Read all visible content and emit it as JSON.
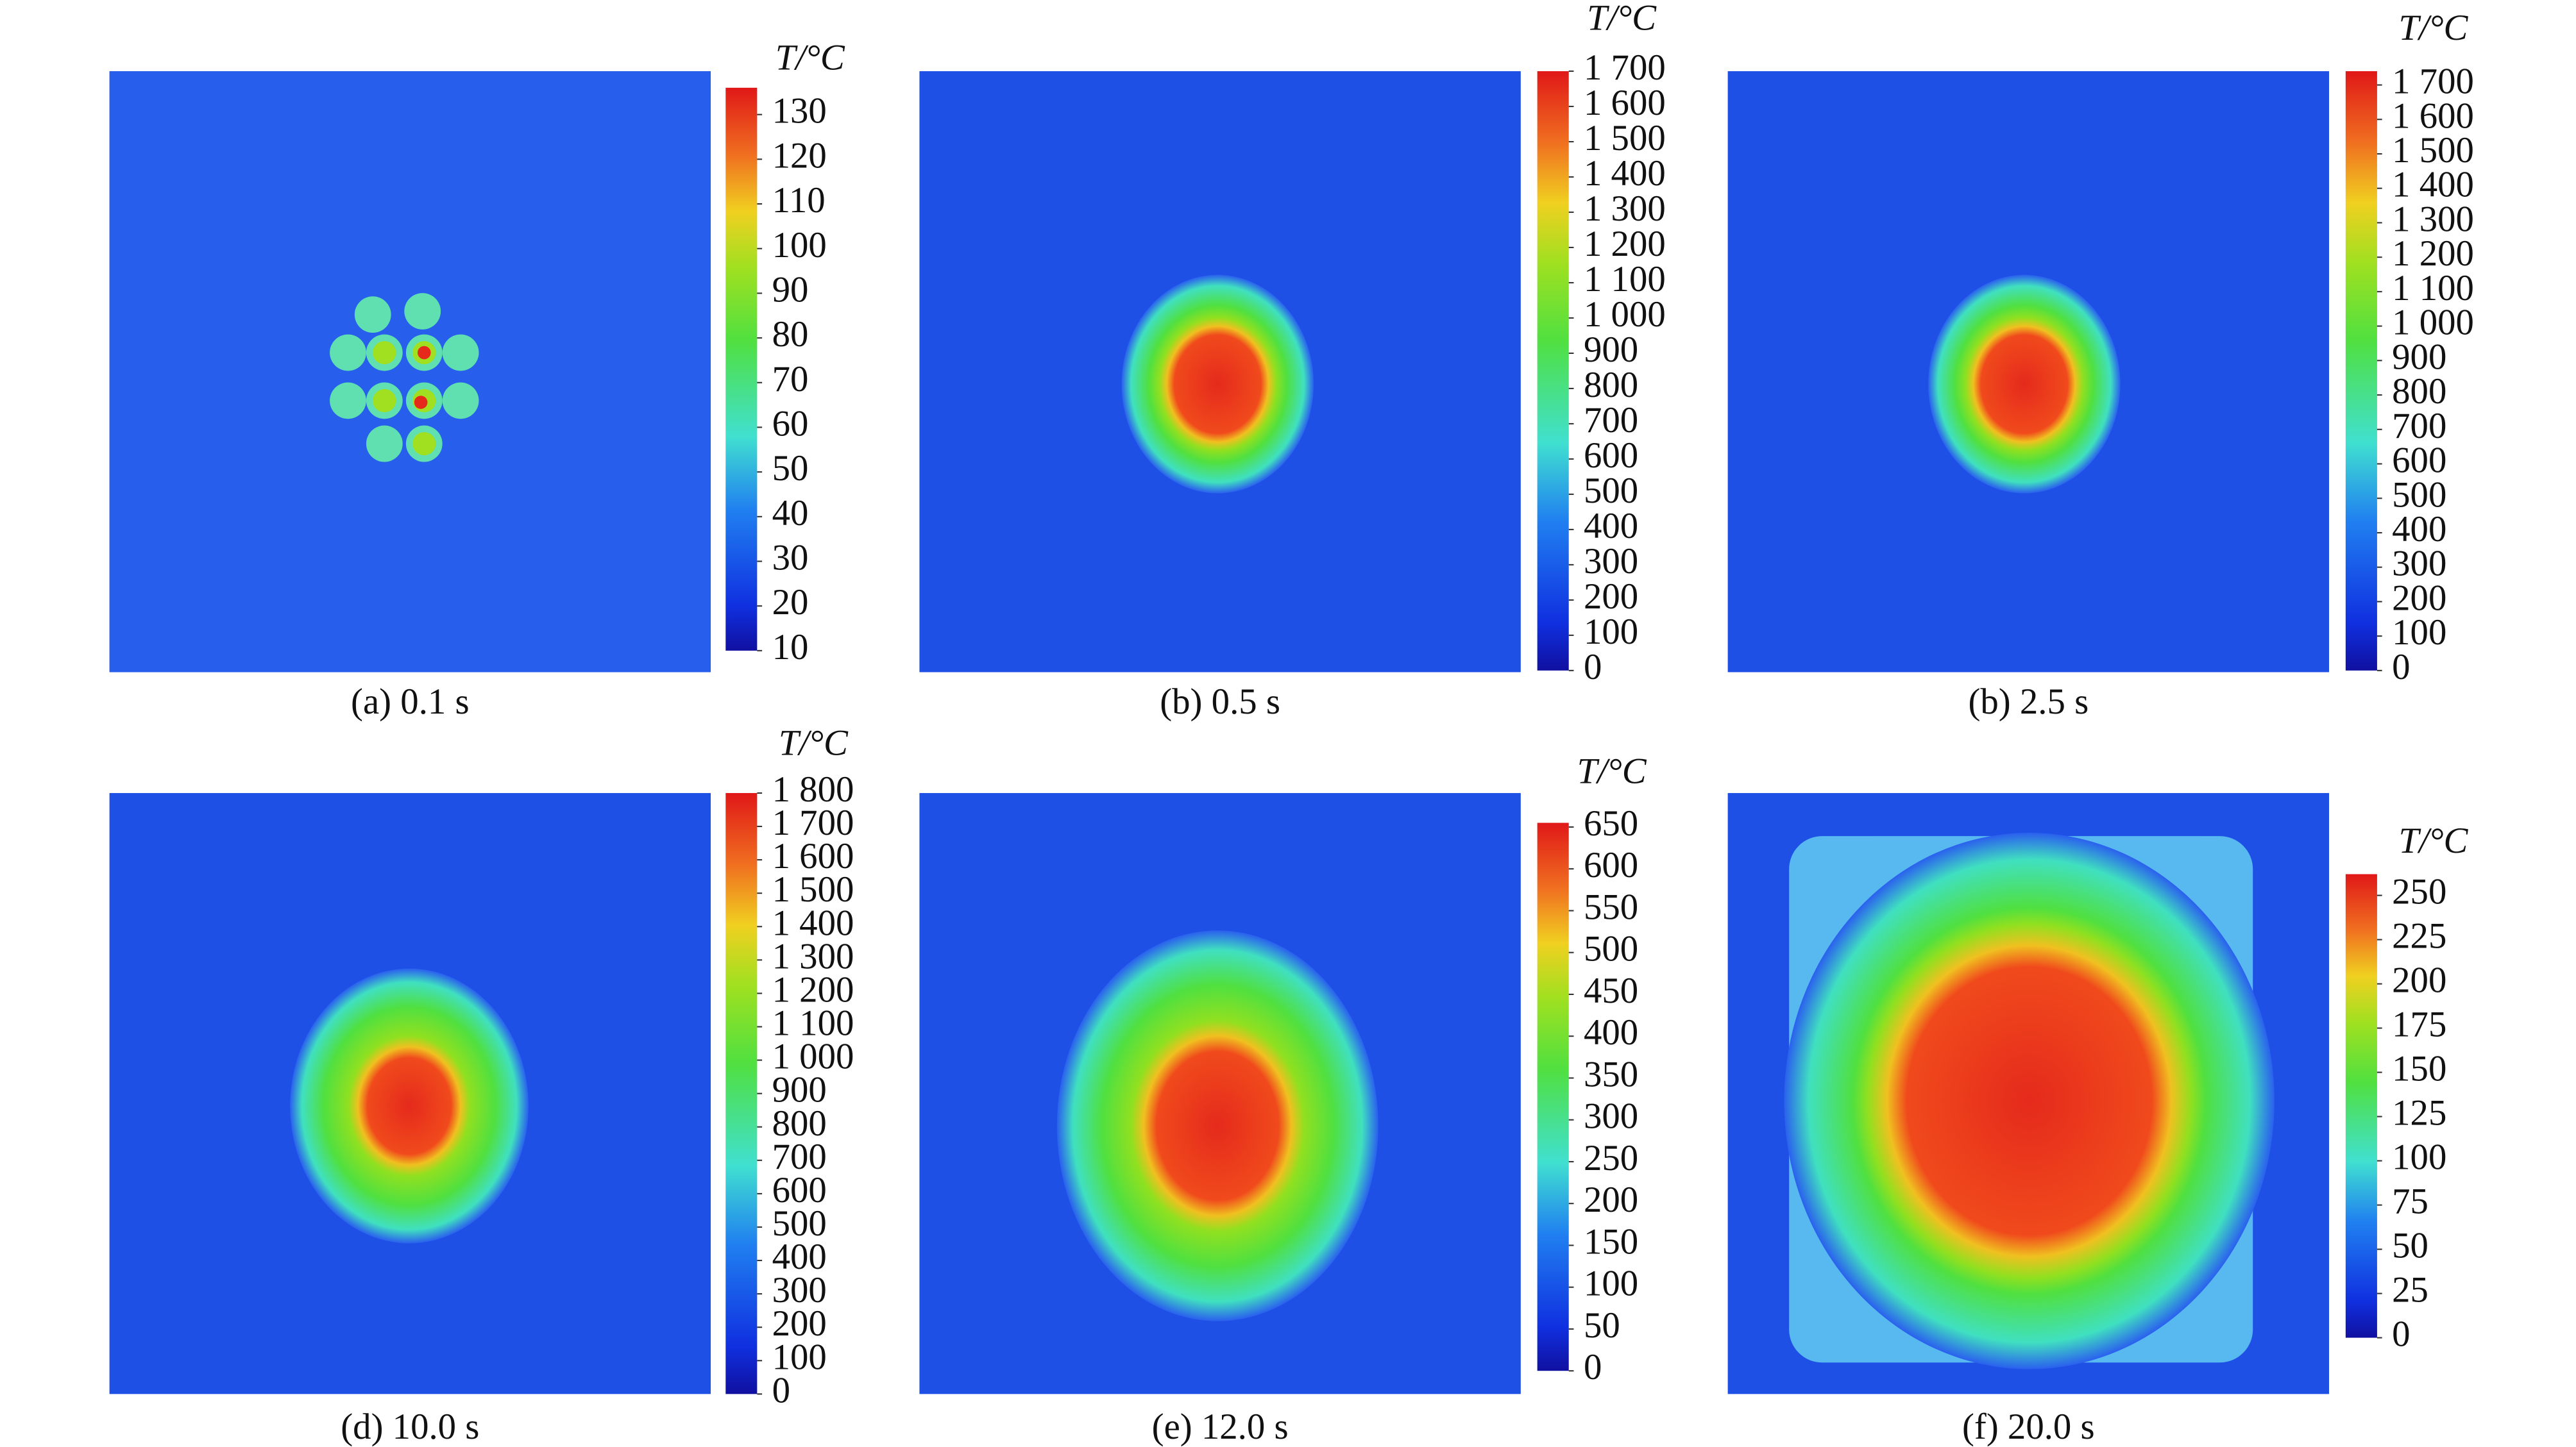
{
  "chart_data": [
    {
      "type": "heatmap",
      "caption": "(a) 0.1 s",
      "colorbar_label": "T/°C",
      "ylim": [
        10,
        136
      ],
      "yticks": [
        10,
        20,
        30,
        40,
        50,
        60,
        70,
        80,
        90,
        100,
        110,
        120,
        130
      ]
    },
    {
      "type": "heatmap",
      "caption": "(b) 0.5 s",
      "colorbar_label": "T/°C",
      "ylim": [
        0,
        1700
      ],
      "yticks": [
        0,
        100,
        200,
        300,
        400,
        500,
        600,
        700,
        800,
        900,
        {
          "value": 1000,
          "label": "1 000"
        },
        {
          "value": 1100,
          "label": "1 100"
        },
        {
          "value": 1200,
          "label": "1 200"
        },
        {
          "value": 1300,
          "label": "1 300"
        },
        {
          "value": 1400,
          "label": "1 400"
        },
        {
          "value": 1500,
          "label": "1 500"
        },
        {
          "value": 1600,
          "label": "1 600"
        },
        {
          "value": 1700,
          "label": "1 700"
        }
      ]
    },
    {
      "type": "heatmap",
      "caption": "(b) 2.5 s",
      "colorbar_label": "T/°C",
      "ylim": [
        0,
        1740
      ],
      "yticks": [
        0,
        100,
        200,
        300,
        400,
        500,
        600,
        700,
        800,
        900,
        {
          "value": 1000,
          "label": "1 000"
        },
        {
          "value": 1100,
          "label": "1 100"
        },
        {
          "value": 1200,
          "label": "1 200"
        },
        {
          "value": 1300,
          "label": "1 300"
        },
        {
          "value": 1400,
          "label": "1 400"
        },
        {
          "value": 1500,
          "label": "1 500"
        },
        {
          "value": 1600,
          "label": "1 600"
        },
        {
          "value": 1700,
          "label": "1 700"
        }
      ]
    },
    {
      "type": "heatmap",
      "caption": "(d) 10.0 s",
      "colorbar_label": "T/°C",
      "ylim": [
        0,
        1800
      ],
      "yticks": [
        0,
        100,
        200,
        300,
        400,
        500,
        600,
        700,
        800,
        900,
        {
          "value": 1000,
          "label": "1 000"
        },
        {
          "value": 1100,
          "label": "1 100"
        },
        {
          "value": 1200,
          "label": "1 200"
        },
        {
          "value": 1300,
          "label": "1 300"
        },
        {
          "value": 1400,
          "label": "1 400"
        },
        {
          "value": 1500,
          "label": "1 500"
        },
        {
          "value": 1600,
          "label": "1 600"
        },
        {
          "value": 1700,
          "label": "1 700"
        },
        {
          "value": 1800,
          "label": "1 800"
        }
      ]
    },
    {
      "type": "heatmap",
      "caption": "(e) 12.0 s",
      "colorbar_label": "T/°C",
      "ylim": [
        0,
        655
      ],
      "yticks": [
        0,
        50,
        100,
        150,
        200,
        250,
        300,
        350,
        400,
        450,
        500,
        550,
        600,
        650
      ]
    },
    {
      "type": "heatmap",
      "caption": "(f) 20.0 s",
      "colorbar_label": "T/°C",
      "ylim": [
        0,
        262
      ],
      "yticks": [
        0,
        25,
        50,
        75,
        100,
        125,
        150,
        175,
        200,
        225,
        250
      ]
    }
  ]
}
